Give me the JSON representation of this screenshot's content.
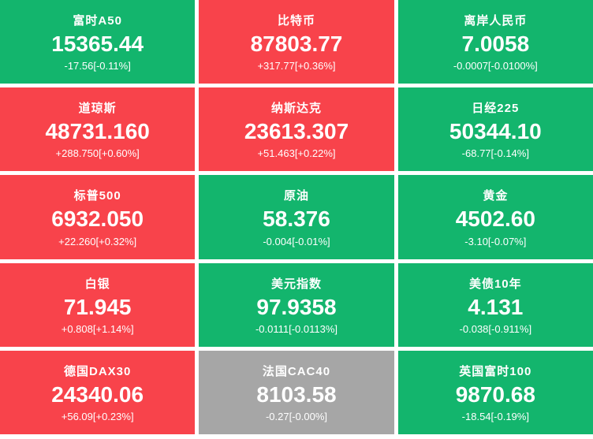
{
  "colors": {
    "red": "#f8434b",
    "green": "#13b56d",
    "gray": "#a6a6a6"
  },
  "tiles": [
    {
      "name": "富时A50",
      "value": "15365.44",
      "change": "-17.56[-0.11%]",
      "color": "green"
    },
    {
      "name": "比特币",
      "value": "87803.77",
      "change": "+317.77[+0.36%]",
      "color": "red"
    },
    {
      "name": "离岸人民币",
      "value": "7.0058",
      "change": "-0.0007[-0.0100%]",
      "color": "green"
    },
    {
      "name": "道琼斯",
      "value": "48731.160",
      "change": "+288.750[+0.60%]",
      "color": "red"
    },
    {
      "name": "纳斯达克",
      "value": "23613.307",
      "change": "+51.463[+0.22%]",
      "color": "red"
    },
    {
      "name": "日经225",
      "value": "50344.10",
      "change": "-68.77[-0.14%]",
      "color": "green"
    },
    {
      "name": "标普500",
      "value": "6932.050",
      "change": "+22.260[+0.32%]",
      "color": "red"
    },
    {
      "name": "原油",
      "value": "58.376",
      "change": "-0.004[-0.01%]",
      "color": "green"
    },
    {
      "name": "黄金",
      "value": "4502.60",
      "change": "-3.10[-0.07%]",
      "color": "green"
    },
    {
      "name": "白银",
      "value": "71.945",
      "change": "+0.808[+1.14%]",
      "color": "red"
    },
    {
      "name": "美元指数",
      "value": "97.9358",
      "change": "-0.0111[-0.0113%]",
      "color": "green"
    },
    {
      "name": "美债10年",
      "value": "4.131",
      "change": "-0.038[-0.911%]",
      "color": "green"
    },
    {
      "name": "德国DAX30",
      "value": "24340.06",
      "change": "+56.09[+0.23%]",
      "color": "red"
    },
    {
      "name": "法国CAC40",
      "value": "8103.58",
      "change": "-0.27[-0.00%]",
      "color": "gray"
    },
    {
      "name": "英国富时100",
      "value": "9870.68",
      "change": "-18.54[-0.19%]",
      "color": "green"
    }
  ]
}
